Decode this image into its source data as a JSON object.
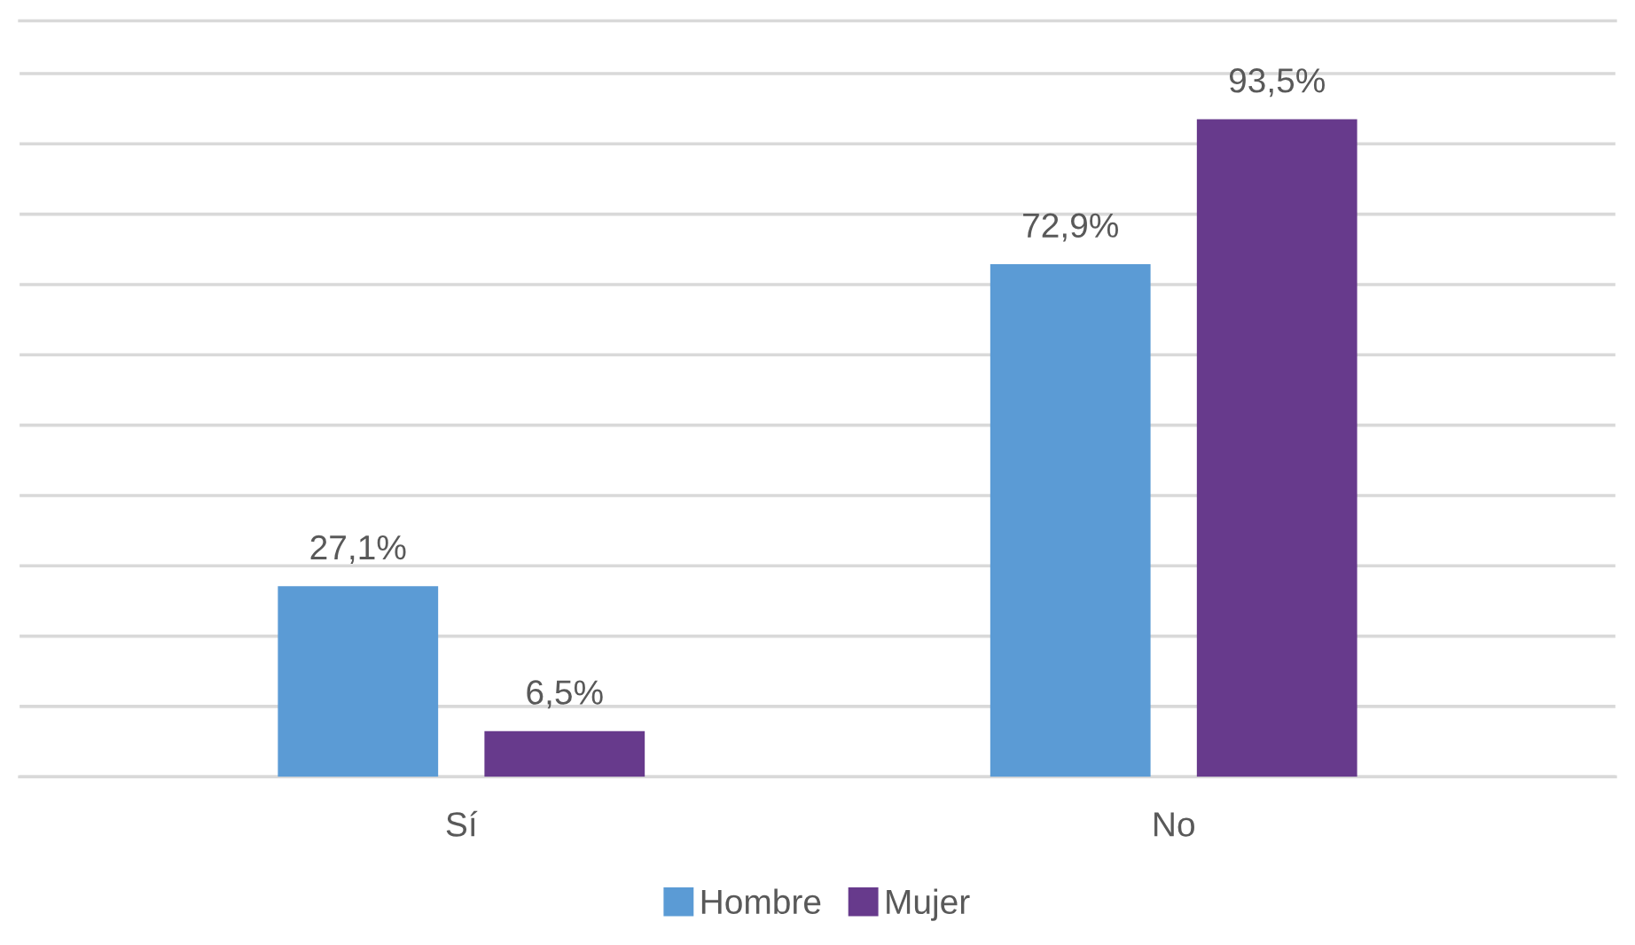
{
  "chart_data": {
    "type": "bar",
    "categories": [
      "Sí",
      "No"
    ],
    "series": [
      {
        "name": "Hombre",
        "color": "#5b9bd5",
        "values": [
          27.1,
          72.9
        ],
        "value_labels": [
          "27,1%",
          "72,9%"
        ]
      },
      {
        "name": "Mujer",
        "color": "#673a8c",
        "values": [
          6.5,
          93.5
        ],
        "value_labels": [
          "6,5%",
          "93,5%"
        ]
      }
    ],
    "ylim": [
      0,
      107.5
    ],
    "yticks": [
      {
        "value": 0,
        "label": null
      },
      {
        "value": 10,
        "label": null
      },
      {
        "value": 20,
        "label": null
      },
      {
        "value": 30,
        "label": null
      },
      {
        "value": 40,
        "label": null
      },
      {
        "value": 50,
        "label": null
      },
      {
        "value": 60,
        "label": null
      },
      {
        "value": 70,
        "label": null
      },
      {
        "value": 80,
        "label": null
      },
      {
        "value": 90,
        "label": null
      },
      {
        "value": 100,
        "label": null
      }
    ],
    "grid": "y",
    "legend": "bottom",
    "tick_labels": "x"
  }
}
